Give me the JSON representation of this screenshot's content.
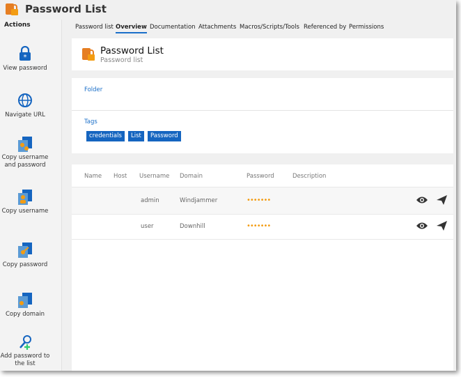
{
  "header": {
    "title": "Password List"
  },
  "sidebar": {
    "heading": "Actions",
    "actions": [
      "View password",
      "Navigate URL",
      "Copy username and password",
      "Copy username",
      "Copy password",
      "Copy domain",
      "Add password to the list"
    ]
  },
  "tabs": {
    "items": [
      "Password list",
      "Overview",
      "Documentation",
      "Attachments",
      "Macros/Scripts/Tools",
      "Referenced by",
      "Permissions"
    ],
    "active": "Overview"
  },
  "entry": {
    "title": "Password List",
    "subtitle": "Password list"
  },
  "folder": {
    "label": "Folder"
  },
  "tags": {
    "label": "Tags",
    "items": [
      "credentials",
      "List",
      "Password"
    ]
  },
  "table": {
    "columns": [
      "Name",
      "Host",
      "Username",
      "Domain",
      "Password",
      "Description"
    ],
    "rows": [
      {
        "username": "admin",
        "domain": "Windjammer",
        "password": "•••••••"
      },
      {
        "username": "user",
        "domain": "Downhill",
        "password": "•••••••"
      }
    ]
  }
}
